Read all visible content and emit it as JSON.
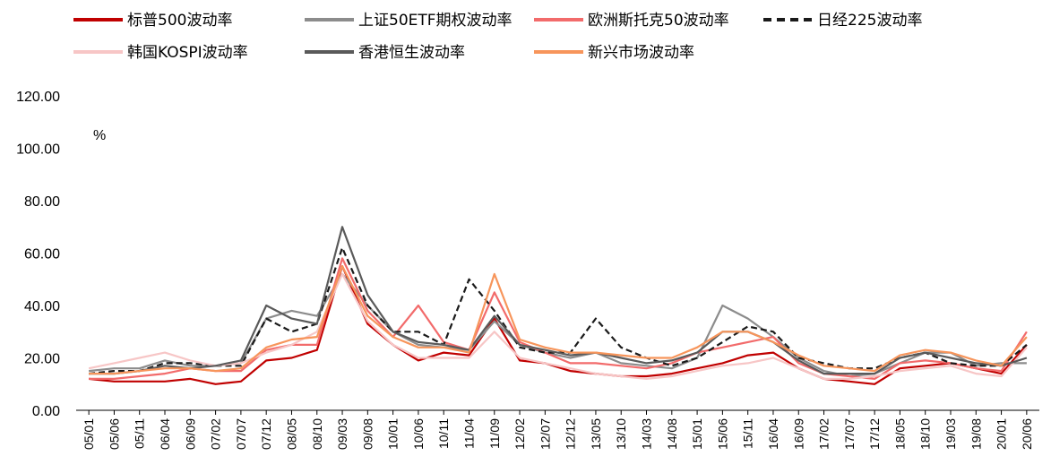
{
  "chart_data": {
    "type": "line",
    "unit_label": "%",
    "ylim": [
      0,
      120
    ],
    "yticks": [
      "0.00",
      "20.00",
      "40.00",
      "60.00",
      "80.00",
      "100.00",
      "120.00"
    ],
    "x": [
      "05/01",
      "05/06",
      "05/11",
      "06/04",
      "06/09",
      "07/02",
      "07/07",
      "07/12",
      "08/05",
      "08/10",
      "09/03",
      "09/08",
      "10/01",
      "10/06",
      "10/11",
      "11/04",
      "11/09",
      "12/02",
      "12/07",
      "12/12",
      "13/05",
      "13/10",
      "14/03",
      "14/08",
      "15/01",
      "15/06",
      "15/11",
      "16/04",
      "16/09",
      "17/02",
      "17/07",
      "17/12",
      "18/05",
      "18/10",
      "19/03",
      "19/08",
      "20/01",
      "20/06"
    ],
    "legend_position": "top",
    "grid": false,
    "series": [
      {
        "name": "标普500波动率",
        "color": "#c00000",
        "dash": "solid",
        "values": [
          12,
          11,
          11,
          11,
          12,
          10,
          11,
          19,
          20,
          23,
          55,
          33,
          25,
          19,
          22,
          21,
          35,
          19,
          18,
          15,
          14,
          13,
          13,
          14,
          16,
          18,
          21,
          22,
          16,
          12,
          11,
          10,
          16,
          17,
          18,
          16,
          14,
          25
        ]
      },
      {
        "name": "上证50ETF期权波动率",
        "color": "#8c8c8c",
        "dash": "solid",
        "values": [
          15,
          16,
          16,
          19,
          17,
          17,
          18,
          35,
          38,
          36,
          52,
          40,
          30,
          25,
          24,
          23,
          34,
          25,
          22,
          20,
          22,
          18,
          17,
          16,
          20,
          40,
          35,
          28,
          20,
          15,
          13,
          14,
          18,
          22,
          22,
          17,
          18,
          18
        ]
      },
      {
        "name": "欧洲斯托克50波动率",
        "color": "#f26b6b",
        "dash": "solid",
        "values": [
          12,
          12,
          13,
          14,
          16,
          15,
          15,
          23,
          25,
          25,
          58,
          38,
          28,
          40,
          26,
          23,
          45,
          26,
          22,
          18,
          18,
          17,
          16,
          18,
          22,
          24,
          26,
          28,
          18,
          14,
          13,
          12,
          18,
          19,
          18,
          16,
          15,
          30
        ]
      },
      {
        "name": "日经225波动率",
        "color": "#1a1a1a",
        "dash": "dash",
        "values": [
          14,
          15,
          15,
          18,
          18,
          17,
          17,
          35,
          30,
          33,
          62,
          40,
          30,
          30,
          25,
          50,
          38,
          24,
          22,
          22,
          35,
          24,
          20,
          17,
          20,
          26,
          32,
          30,
          20,
          18,
          16,
          16,
          20,
          22,
          18,
          17,
          17,
          25
        ]
      },
      {
        "name": "韩国KOSPI波动率",
        "color": "#f7c6c6",
        "dash": "solid",
        "values": [
          16,
          18,
          20,
          22,
          19,
          17,
          18,
          22,
          25,
          30,
          52,
          34,
          25,
          20,
          20,
          20,
          30,
          20,
          18,
          16,
          14,
          13,
          12,
          13,
          15,
          17,
          18,
          20,
          16,
          12,
          12,
          13,
          15,
          16,
          17,
          14,
          13,
          24
        ]
      },
      {
        "name": "香港恒生波动率",
        "color": "#5a5a5a",
        "dash": "solid",
        "values": [
          14,
          14,
          15,
          17,
          16,
          17,
          19,
          40,
          35,
          33,
          70,
          44,
          30,
          26,
          25,
          23,
          36,
          25,
          23,
          21,
          22,
          20,
          18,
          19,
          22,
          30,
          30,
          26,
          19,
          14,
          14,
          14,
          20,
          22,
          20,
          18,
          17,
          20
        ]
      },
      {
        "name": "新兴市场波动率",
        "color": "#f7955b",
        "dash": "solid",
        "values": [
          14,
          14,
          15,
          16,
          16,
          15,
          16,
          24,
          27,
          28,
          55,
          36,
          28,
          24,
          24,
          22,
          52,
          27,
          24,
          22,
          22,
          21,
          20,
          20,
          24,
          30,
          30,
          26,
          21,
          17,
          16,
          15,
          21,
          23,
          22,
          19,
          17,
          28
        ]
      }
    ]
  }
}
